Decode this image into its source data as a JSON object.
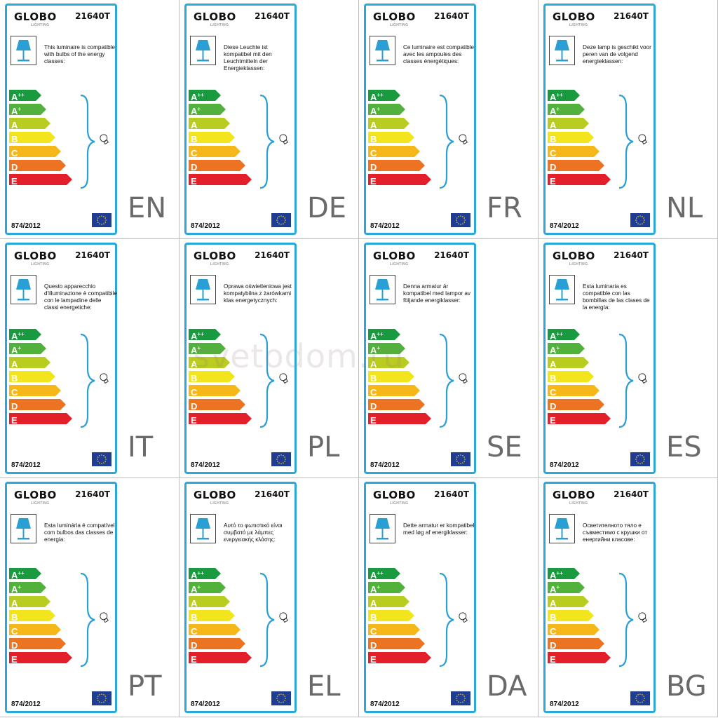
{
  "brand": "GLOBO",
  "brand_sub": "LIGHTING",
  "model": "21640T",
  "regulation": "874/2012",
  "watermark": "svetodom.ru",
  "energy_classes": [
    {
      "letter": "A",
      "sup": "++",
      "color": "#1a9a3f"
    },
    {
      "letter": "A",
      "sup": "+",
      "color": "#52b13c"
    },
    {
      "letter": "A",
      "sup": "",
      "color": "#b9cd20"
    },
    {
      "letter": "B",
      "sup": "",
      "color": "#f3e51b"
    },
    {
      "letter": "C",
      "sup": "",
      "color": "#f6b718"
    },
    {
      "letter": "D",
      "sup": "",
      "color": "#ec7321"
    },
    {
      "letter": "E",
      "sup": "",
      "color": "#e3202a"
    }
  ],
  "colors": {
    "card_border": "#2aa7dc",
    "lamp": "#2a9fd6",
    "eu_blue": "#1f3e93",
    "eu_star": "#f7d117"
  },
  "icons": {
    "lamp": "table-lamp-icon",
    "bulb": "light-bulb-icon",
    "flag": "eu-flag-icon"
  },
  "labels": [
    {
      "lang": "EN",
      "text": "This luminaire is compatible with bulbs of the energy classes:"
    },
    {
      "lang": "DE",
      "text": "Diese Leuchte ist kompatibel mit den Leuchtmitteln der Energieklassen:"
    },
    {
      "lang": "FR",
      "text": "Ce luminaire est compatible avec les ampoules des classes énergétiques:"
    },
    {
      "lang": "NL",
      "text": "Deze lamp is geschikt voor peren van de volgend energieklassen:"
    },
    {
      "lang": "IT",
      "text": "Questo apparecchio d'illuminazione è compatibile con le lampadine delle classi energetiche:"
    },
    {
      "lang": "PL",
      "text": "Oprawa oświetleniowa jest kompatybilna z żarówkami klas energetycznych:"
    },
    {
      "lang": "SE",
      "text": "Denna armatur är kompatibel med lampor av följande energiklasser:"
    },
    {
      "lang": "ES",
      "text": "Esta luminaria es compatible con las bombillas de las clases de la energía:"
    },
    {
      "lang": "PT",
      "text": "Esta luminária é compatível com bulbos das classes de energia:"
    },
    {
      "lang": "EL",
      "text": "Αυτό το φωτιστικό είναι συμβατό με λάμπες ενεργειακής κλάσης:"
    },
    {
      "lang": "DA",
      "text": "Dette armatur er kompatibel med løg af energiklasser:"
    },
    {
      "lang": "BG",
      "text": "Осветителното тяло е съвместимо с крушки от енергийни класове:"
    }
  ]
}
